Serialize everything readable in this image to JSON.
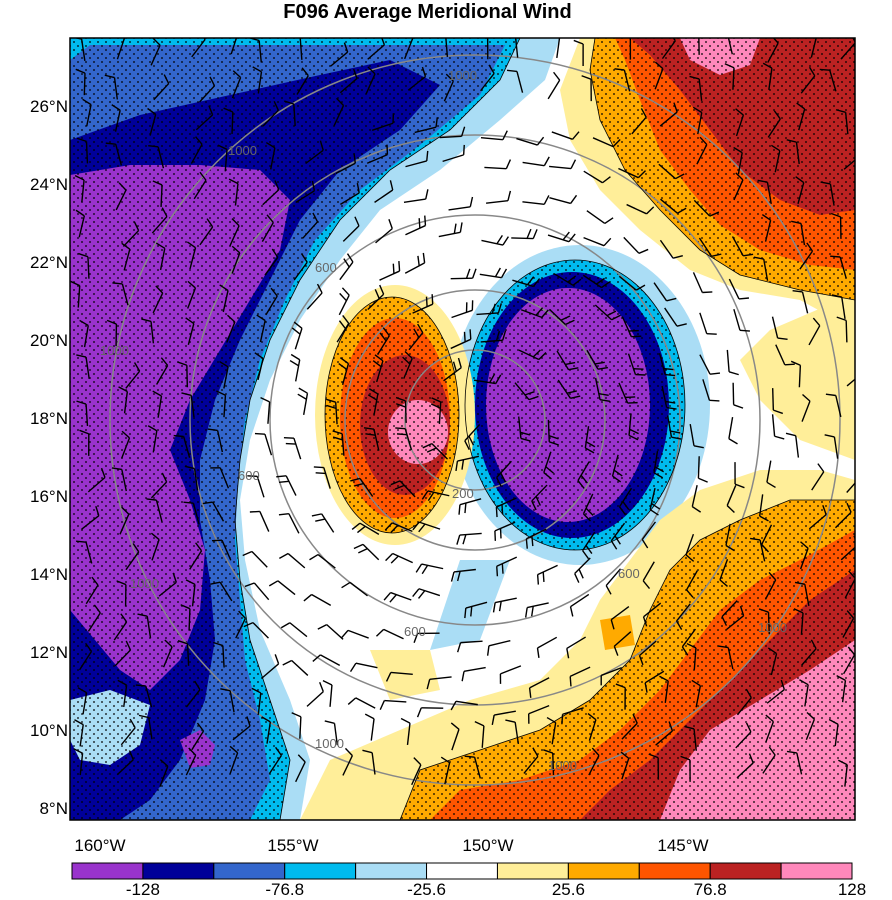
{
  "title": "F096 Average Meridional Wind",
  "lat_labels": [
    "26°N",
    "24°N",
    "22°N",
    "20°N",
    "18°N",
    "16°N",
    "14°N",
    "12°N",
    "10°N",
    "8°N"
  ],
  "lon_labels": [
    "160°W",
    "155°W",
    "150°W",
    "145°W"
  ],
  "colorbar": {
    "colors": [
      "#9933cc",
      "#000099",
      "#3366cc",
      "#00bbee",
      "#aaddf5",
      "#ffffff",
      "#ffee99",
      "#ffaa00",
      "#ff5500",
      "#bb2222",
      "#ff88bb"
    ],
    "labels": [
      "-128",
      "-76.8",
      "-25.6",
      "25.6",
      "76.8",
      "128"
    ]
  },
  "range_ring_labels": [
    "1000",
    "1000",
    "600",
    "1000",
    "600",
    "200",
    "1000",
    "600",
    "600",
    "1000",
    "1000",
    "1000"
  ]
}
